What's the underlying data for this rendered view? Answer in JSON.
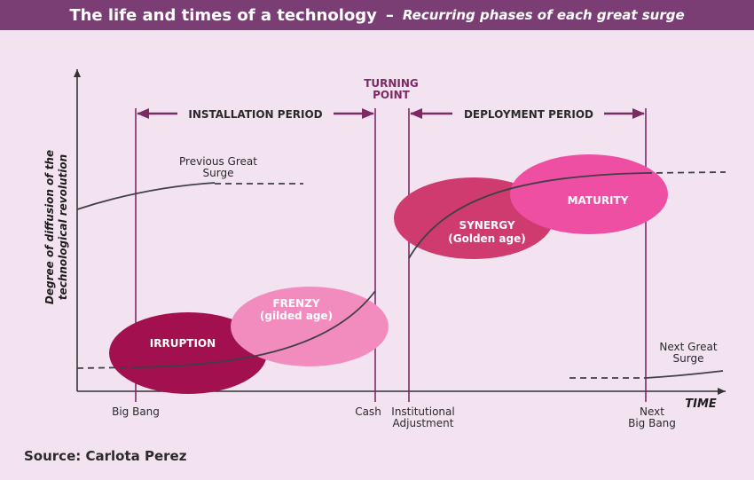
{
  "title": "The life and times of a technology",
  "title_dash": "–",
  "subtitle": "Recurring phases of each great surge",
  "y_axis_label_line1": "Degree of diffusion of the",
  "y_axis_label_line2": "technological revolution",
  "x_axis_label": "TIME",
  "periods": {
    "installation": "INSTALLATION PERIOD",
    "deployment": "DEPLOYMENT PERIOD",
    "turning_point_line1": "TURNING",
    "turning_point_line2": "POINT"
  },
  "phases": {
    "irruption": "IRRUPTION",
    "frenzy_line1": "FRENZY",
    "frenzy_line2": "(gilded age)",
    "synergy_line1": "SYNERGY",
    "synergy_line2": "(Golden age)",
    "maturity": "MATURITY"
  },
  "surges": {
    "previous_line1": "Previous Great",
    "previous_line2": "Surge",
    "next_line1": "Next Great",
    "next_line2": "Surge"
  },
  "events": {
    "big_bang": "Big Bang",
    "crash": "Cash",
    "institutional_line1": "Institutional",
    "institutional_line2": "Adjustment",
    "next_line1": "Next",
    "next_line2": "Big Bang"
  },
  "source": "Source: Carlota Perez",
  "colors": {
    "title_bar": "#7a3e75",
    "background": "#f3e3f1",
    "period_line": "#7b2a64",
    "irruption": "#a3104f",
    "frenzy": "#f28cbf",
    "synergy": "#cf3b6e",
    "maturity": "#ee4fa3",
    "curve": "#3f3f46"
  }
}
